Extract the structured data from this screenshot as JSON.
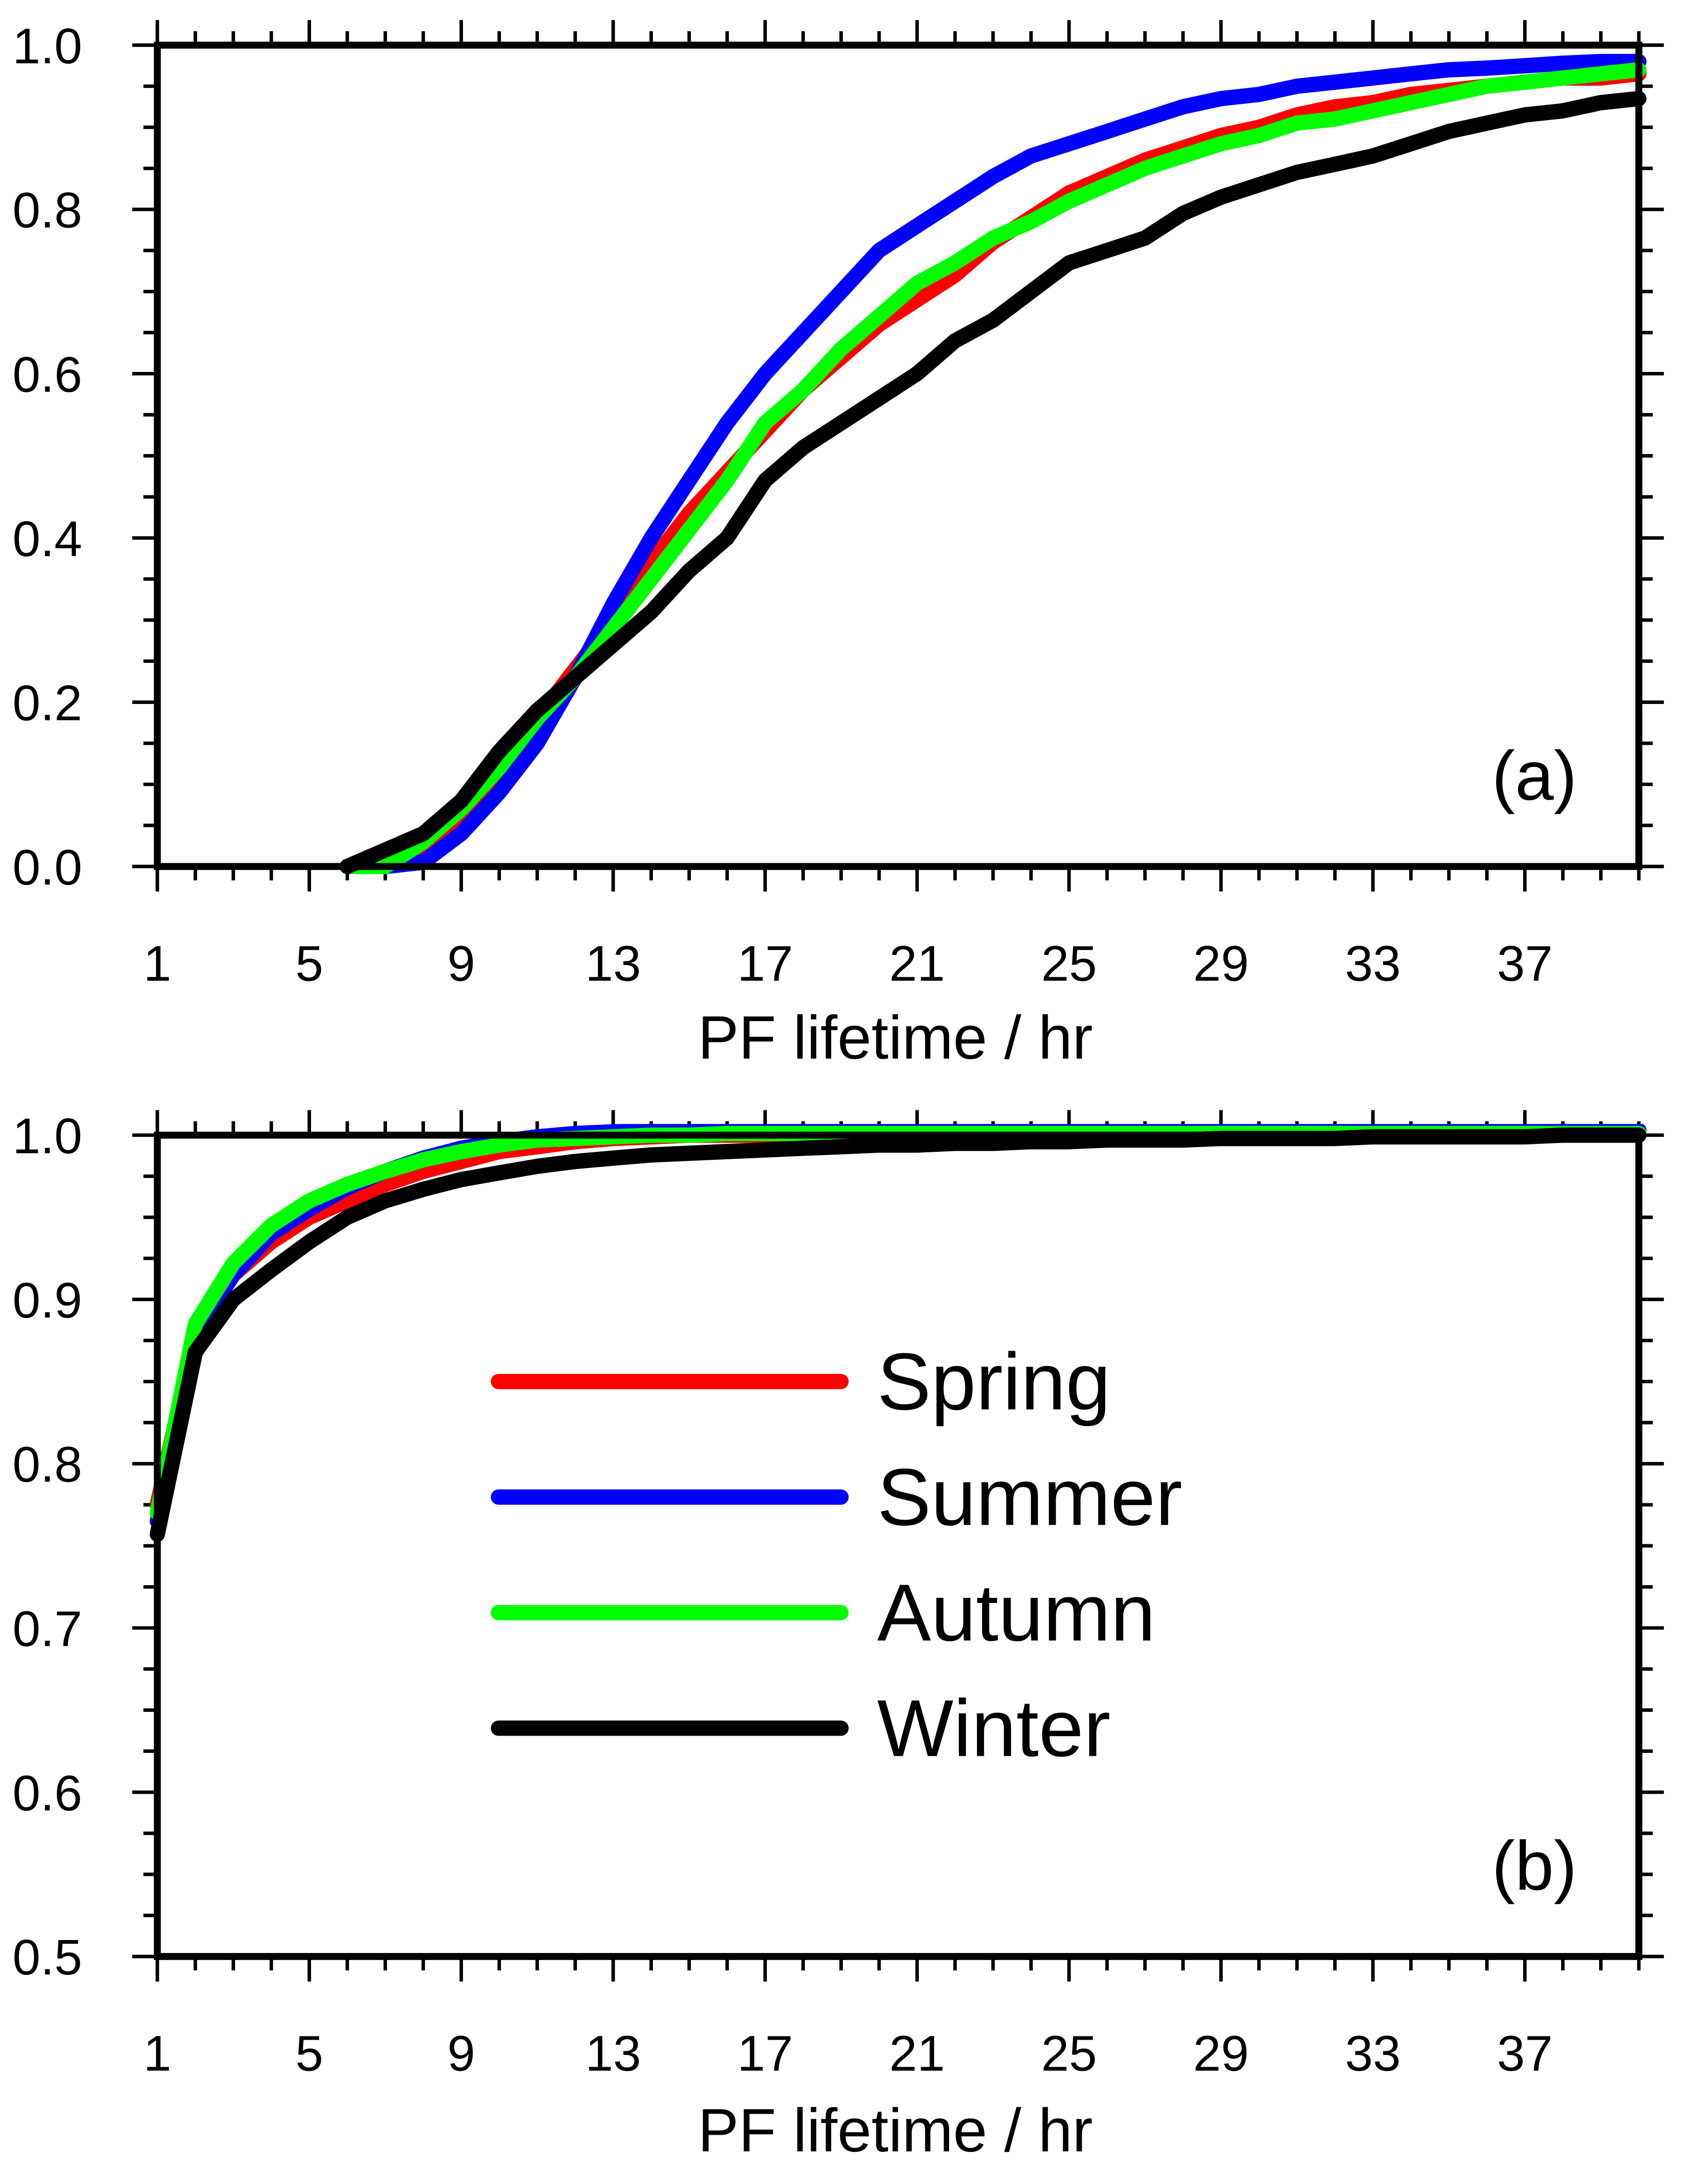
{
  "chart_data": [
    {
      "type": "line",
      "panel_label": "(a)",
      "xlabel": "PF lifetime / hr",
      "ylabel": "",
      "xlim": [
        1,
        40
      ],
      "ylim": [
        0,
        1
      ],
      "x_ticks": [
        "1",
        "5",
        "9",
        "13",
        "17",
        "21",
        "25",
        "29",
        "33",
        "37"
      ],
      "y_ticks": [
        "0.0",
        "0.2",
        "0.4",
        "0.6",
        "0.8",
        "1.0"
      ],
      "y_tick_values": [
        0,
        0.2,
        0.4,
        0.6,
        0.8,
        1.0
      ],
      "x": [
        6,
        7,
        8,
        9,
        10,
        11,
        12,
        13,
        14,
        15,
        16,
        17,
        18,
        19,
        20,
        21,
        22,
        23,
        24,
        25,
        26,
        27,
        28,
        29,
        30,
        31,
        32,
        33,
        34,
        35,
        36,
        37,
        38,
        39,
        40
      ],
      "series": [
        {
          "name": "Spring",
          "color": "#ff0000",
          "values": [
            0,
            0,
            0.02,
            0.06,
            0.12,
            0.18,
            0.24,
            0.3,
            0.37,
            0.43,
            0.48,
            0.53,
            0.58,
            0.62,
            0.66,
            0.69,
            0.72,
            0.76,
            0.79,
            0.82,
            0.84,
            0.86,
            0.875,
            0.89,
            0.9,
            0.915,
            0.925,
            0.93,
            0.94,
            0.945,
            0.95,
            0.955,
            0.96,
            0.96,
            0.965
          ]
        },
        {
          "name": "Summer",
          "color": "#0000ff",
          "values": [
            0,
            0,
            0.005,
            0.04,
            0.09,
            0.15,
            0.23,
            0.32,
            0.4,
            0.47,
            0.54,
            0.6,
            0.65,
            0.7,
            0.75,
            0.78,
            0.81,
            0.84,
            0.865,
            0.88,
            0.895,
            0.91,
            0.925,
            0.935,
            0.94,
            0.95,
            0.955,
            0.96,
            0.965,
            0.97,
            0.972,
            0.975,
            0.978,
            0.98,
            0.98
          ]
        },
        {
          "name": "Autumn",
          "color": "#00ff00",
          "values": [
            0,
            0,
            0.03,
            0.07,
            0.12,
            0.18,
            0.23,
            0.29,
            0.35,
            0.41,
            0.47,
            0.54,
            0.58,
            0.63,
            0.67,
            0.71,
            0.735,
            0.765,
            0.785,
            0.81,
            0.83,
            0.85,
            0.865,
            0.88,
            0.89,
            0.905,
            0.91,
            0.92,
            0.93,
            0.94,
            0.95,
            0.955,
            0.96,
            0.965,
            0.97
          ]
        },
        {
          "name": "Winter",
          "color": "#000000",
          "values": [
            0,
            0.02,
            0.04,
            0.08,
            0.14,
            0.19,
            0.23,
            0.27,
            0.31,
            0.36,
            0.4,
            0.47,
            0.51,
            0.54,
            0.57,
            0.6,
            0.64,
            0.665,
            0.7,
            0.735,
            0.75,
            0.765,
            0.795,
            0.815,
            0.83,
            0.845,
            0.855,
            0.865,
            0.88,
            0.895,
            0.905,
            0.915,
            0.92,
            0.93,
            0.935
          ]
        }
      ]
    },
    {
      "type": "line",
      "panel_label": "(b)",
      "xlabel": "PF lifetime / hr",
      "ylabel": "",
      "xlim": [
        1,
        40
      ],
      "ylim": [
        0.5,
        1
      ],
      "x_ticks": [
        "1",
        "5",
        "9",
        "13",
        "17",
        "21",
        "25",
        "29",
        "33",
        "37"
      ],
      "y_ticks": [
        "0.5",
        "0.6",
        "0.7",
        "0.8",
        "0.9",
        "1.0"
      ],
      "y_tick_values": [
        0.5,
        0.6,
        0.7,
        0.8,
        0.9,
        1.0
      ],
      "x": [
        1,
        2,
        3,
        4,
        5,
        6,
        7,
        8,
        9,
        10,
        11,
        12,
        13,
        14,
        15,
        16,
        17,
        18,
        19,
        20,
        21,
        22,
        23,
        24,
        25,
        26,
        27,
        28,
        29,
        30,
        31,
        32,
        33,
        34,
        35,
        36,
        37,
        38,
        39,
        40
      ],
      "series": [
        {
          "name": "Spring",
          "color": "#ff0000",
          "values": [
            0.775,
            0.88,
            0.915,
            0.935,
            0.95,
            0.96,
            0.97,
            0.978,
            0.984,
            0.99,
            0.993,
            0.996,
            0.998,
            0.999,
            1,
            1,
            1,
            1,
            1,
            1,
            1,
            1,
            1,
            1,
            1,
            1,
            1,
            1,
            1,
            1,
            1,
            1,
            1,
            1,
            1,
            1,
            1,
            1,
            1,
            1
          ]
        },
        {
          "name": "Summer",
          "color": "#0000ff",
          "values": [
            0.765,
            0.88,
            0.915,
            0.94,
            0.955,
            0.968,
            0.978,
            0.986,
            0.992,
            0.996,
            0.999,
            1.001,
            1.002,
            1.003,
            1.003,
            1.003,
            1.003,
            1.003,
            1.003,
            1.003,
            1.003,
            1.003,
            1.003,
            1.003,
            1.003,
            1.003,
            1.003,
            1.003,
            1.003,
            1.003,
            1.003,
            1.003,
            1.003,
            1.003,
            1.003,
            1.003,
            1.003,
            1.003,
            1.003,
            1.003
          ]
        },
        {
          "name": "Autumn",
          "color": "#00ff00",
          "values": [
            0.77,
            0.885,
            0.922,
            0.945,
            0.96,
            0.97,
            0.978,
            0.985,
            0.99,
            0.994,
            0.997,
            0.998,
            0.999,
            1,
            1,
            1.001,
            1.001,
            1.001,
            1.001,
            1.001,
            1.001,
            1.001,
            1.001,
            1.001,
            1.001,
            1.001,
            1.001,
            1.001,
            1.001,
            1.001,
            1.001,
            1.001,
            1.001,
            1.001,
            1.001,
            1.001,
            1.001,
            1.001,
            1.001,
            1.001
          ]
        },
        {
          "name": "Winter",
          "color": "#000000",
          "values": [
            0.757,
            0.868,
            0.9,
            0.918,
            0.935,
            0.95,
            0.96,
            0.967,
            0.973,
            0.977,
            0.981,
            0.984,
            0.986,
            0.988,
            0.989,
            0.99,
            0.991,
            0.992,
            0.993,
            0.994,
            0.994,
            0.995,
            0.995,
            0.996,
            0.996,
            0.997,
            0.997,
            0.997,
            0.998,
            0.998,
            0.998,
            0.998,
            0.999,
            0.999,
            0.999,
            0.999,
            0.999,
            1,
            1,
            1
          ]
        }
      ],
      "legend": {
        "placement": "center-left",
        "entries": [
          "Spring",
          "Summer",
          "Autumn",
          "Winter"
        ]
      }
    }
  ]
}
